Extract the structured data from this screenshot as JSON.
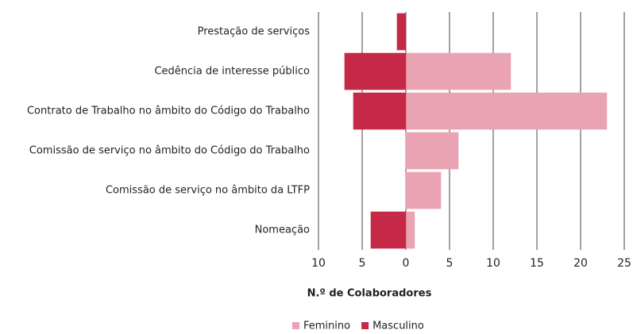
{
  "chart_data": {
    "type": "diverging-bar",
    "categories": [
      "Prestação de serviços",
      "Cedência de interesse público",
      "Contrato de Trabalho no âmbito do Código do Trabalho",
      "Comissão de serviço no âmbito do Código do Trabalho",
      "Comissão de serviço no âmbito da LTFP",
      "Nomeação"
    ],
    "series": [
      {
        "name": "Feminino",
        "color": "#e9a3b3",
        "values": [
          0,
          12,
          23,
          6,
          4,
          1
        ]
      },
      {
        "name": "Masculino",
        "color": "#c62848",
        "values": [
          -1,
          -7,
          -6,
          0,
          0,
          -4
        ]
      }
    ],
    "xlim": [
      -10,
      25
    ],
    "xticks": [
      {
        "value": -10,
        "label": "10"
      },
      {
        "value": -5,
        "label": "5"
      },
      0,
      5,
      10,
      15,
      20,
      25
    ],
    "xlabel": "N.º de Colaboradores",
    "grid": true
  }
}
